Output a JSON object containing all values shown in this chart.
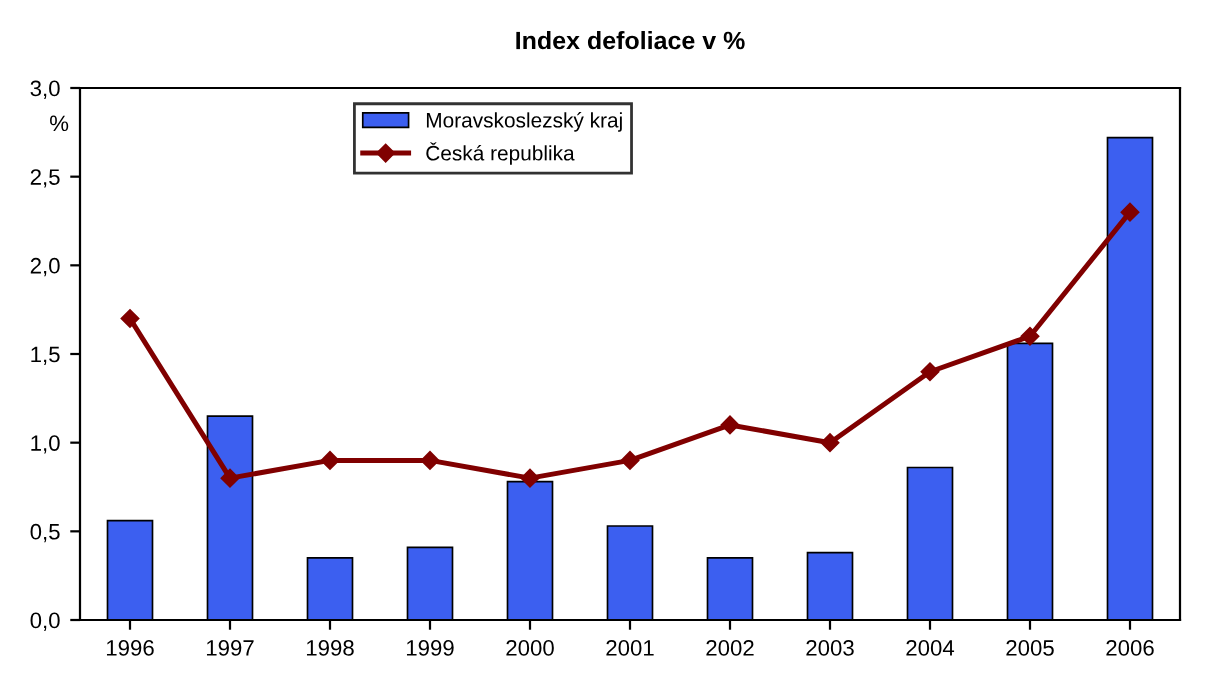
{
  "chart_data": {
    "type": "bar",
    "title": "Index defoliace v %",
    "ylabel": "%",
    "categories": [
      "1996",
      "1997",
      "1998",
      "1999",
      "2000",
      "2001",
      "2002",
      "2003",
      "2004",
      "2005",
      "2006"
    ],
    "series": [
      {
        "name": "Moravskoslezský kraj",
        "color": "#3c5ff0",
        "values": [
          0.56,
          1.15,
          0.35,
          0.41,
          0.78,
          0.53,
          0.35,
          0.38,
          0.86,
          1.56,
          2.72
        ]
      },
      {
        "name": "Česká republika",
        "type": "line",
        "color": "#800000",
        "marker": "diamond",
        "values": [
          1.7,
          0.8,
          0.9,
          0.9,
          0.8,
          0.9,
          1.1,
          1.0,
          1.4,
          1.6,
          2.3
        ]
      }
    ],
    "ylim": [
      0,
      3
    ],
    "yticks": [
      {
        "value": 0,
        "label": "0,0"
      },
      {
        "value": 0.5,
        "label": "0,5"
      },
      {
        "value": 1,
        "label": "1,0"
      },
      {
        "value": 1.5,
        "label": "1,5"
      },
      {
        "value": 2,
        "label": "2,0"
      },
      {
        "value": 2.5,
        "label": "2,5"
      },
      {
        "value": 3,
        "label": "3,0"
      }
    ],
    "grid": false,
    "legend": "top left"
  }
}
